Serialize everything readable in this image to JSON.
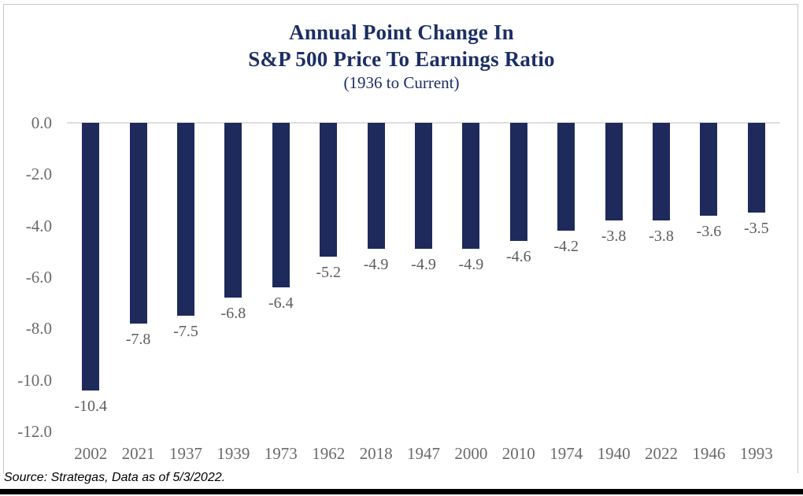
{
  "chart_data": {
    "type": "bar",
    "title": "Annual Point Change In",
    "title_line2": "S&P 500 Price To Earnings Ratio",
    "subtitle": "(1936 to Current)",
    "categories": [
      "2002",
      "2021",
      "1937",
      "1939",
      "1973",
      "1962",
      "2018",
      "1947",
      "2000",
      "2010",
      "1974",
      "1940",
      "2022",
      "1946",
      "1993"
    ],
    "values": [
      -10.4,
      -7.8,
      -7.5,
      -6.8,
      -6.4,
      -5.2,
      -4.9,
      -4.9,
      -4.9,
      -4.6,
      -4.2,
      -3.8,
      -3.8,
      -3.6,
      -3.5
    ],
    "value_labels": [
      "-10.4",
      "-7.8",
      "-7.5",
      "-6.8",
      "-6.4",
      "-5.2",
      "-4.9",
      "-4.9",
      "-4.9",
      "-4.6",
      "-4.2",
      "-3.8",
      "-3.8",
      "-3.6",
      "-3.5"
    ],
    "ylim": [
      -12.0,
      0.0
    ],
    "yticks": [
      0.0,
      -2.0,
      -4.0,
      -6.0,
      -8.0,
      -10.0,
      -12.0
    ],
    "ytick_labels": [
      "0.0",
      "-2.0",
      "-4.0",
      "-6.0",
      "-8.0",
      "-10.0",
      "-12.0"
    ],
    "grid": false,
    "legend": "none",
    "bar_color": "#1e2a5c",
    "title_color": "#1c2f63",
    "axis_label_color": "#6a6a6a",
    "value_label_color": "#5c5c5c"
  },
  "source_note": "Source: Strategas, Data as of 5/3/2022."
}
